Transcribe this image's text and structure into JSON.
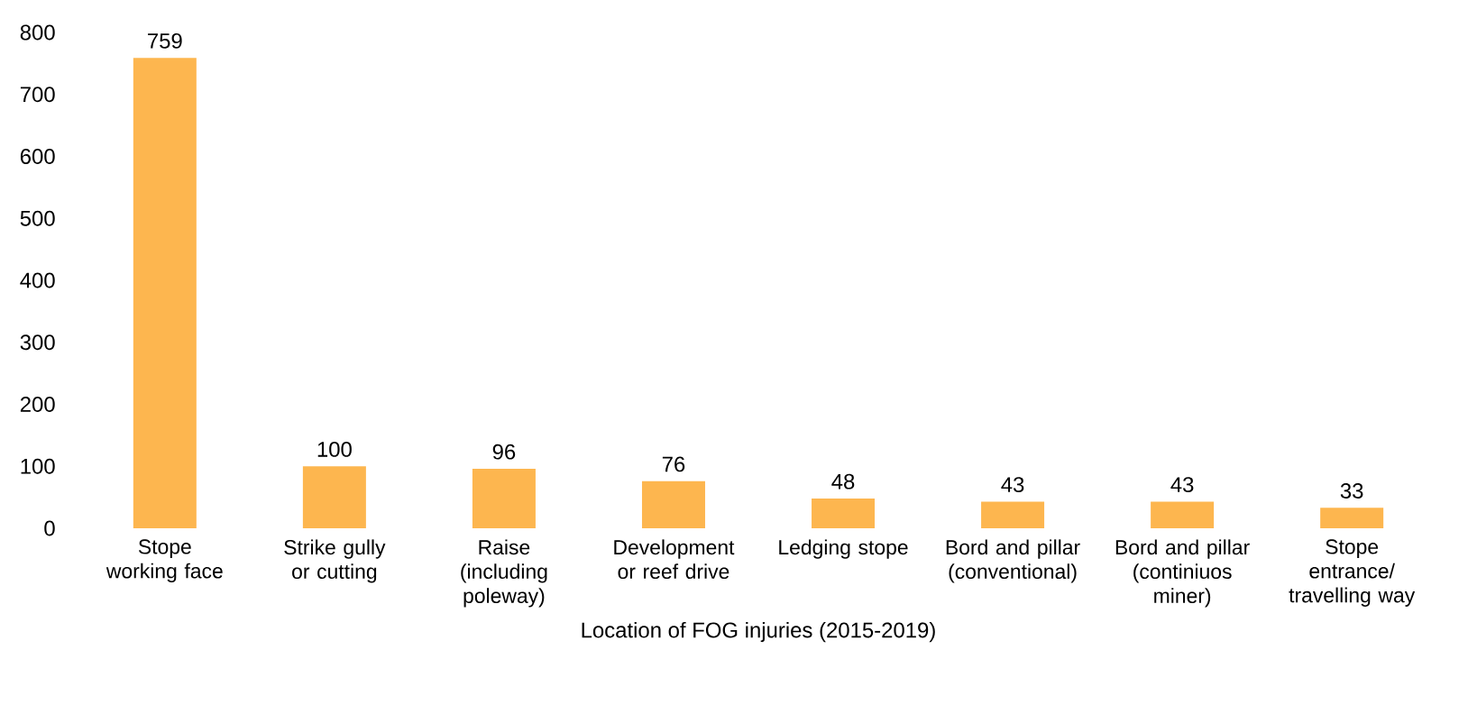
{
  "chart_data": {
    "type": "bar",
    "xlabel": "Location of FOG injuries (2015-2019)",
    "categories": [
      "Stope working face",
      "Strike gully or cutting",
      "Raise (including poleway)",
      "Development or reef drive",
      "Ledging stope",
      "Bord and pillar (conventional)",
      "Bord and pillar (continiuos miner)",
      "Stope entrance/ travelling way"
    ],
    "values": [
      759,
      100,
      96,
      76,
      48,
      43,
      43,
      33
    ],
    "color": "#fdb64f",
    "ylim": [
      0,
      800
    ],
    "yticks": [
      0,
      100,
      200,
      300,
      400,
      500,
      600,
      700,
      800
    ],
    "data_labels": true
  }
}
